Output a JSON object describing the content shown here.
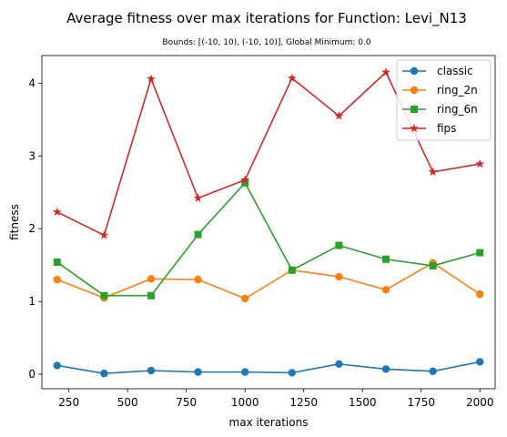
{
  "chart_data": {
    "type": "line",
    "title": "Average fitness over max iterations for Function: Levi_N13",
    "subtitle": "Bounds: [(-10, 10), (-10, 10)], Global Minimum: 0.0",
    "xlabel": "max iterations",
    "ylabel": "fitness",
    "xlim": [
      135,
      2065
    ],
    "ylim": [
      -0.2,
      4.38
    ],
    "x": [
      200,
      400,
      600,
      800,
      1000,
      1200,
      1400,
      1600,
      1800,
      2000
    ],
    "xticks": [
      250,
      500,
      750,
      1000,
      1250,
      1500,
      1750,
      2000
    ],
    "yticks": [
      0,
      1,
      2,
      3,
      4
    ],
    "grid": false,
    "legend_position": "top-right",
    "series": [
      {
        "name": "classic",
        "color": "#1f77b4",
        "marker": "circle",
        "values": [
          0.12,
          0.01,
          0.05,
          0.03,
          0.03,
          0.02,
          0.14,
          0.07,
          0.04,
          0.17
        ]
      },
      {
        "name": "ring_2n",
        "color": "#ff7f0e",
        "marker": "circle",
        "values": [
          1.3,
          1.05,
          1.31,
          1.3,
          1.04,
          1.43,
          1.34,
          1.16,
          1.53,
          1.1
        ]
      },
      {
        "name": "ring_6n",
        "color": "#2ca02c",
        "marker": "square",
        "values": [
          1.54,
          1.08,
          1.08,
          1.92,
          2.63,
          1.43,
          1.77,
          1.58,
          1.49,
          1.67
        ]
      },
      {
        "name": "fips",
        "color": "#d62728",
        "marker": "star",
        "values": [
          2.23,
          1.91,
          4.06,
          2.42,
          2.67,
          4.07,
          3.55,
          4.15,
          2.78,
          2.89
        ]
      }
    ]
  }
}
